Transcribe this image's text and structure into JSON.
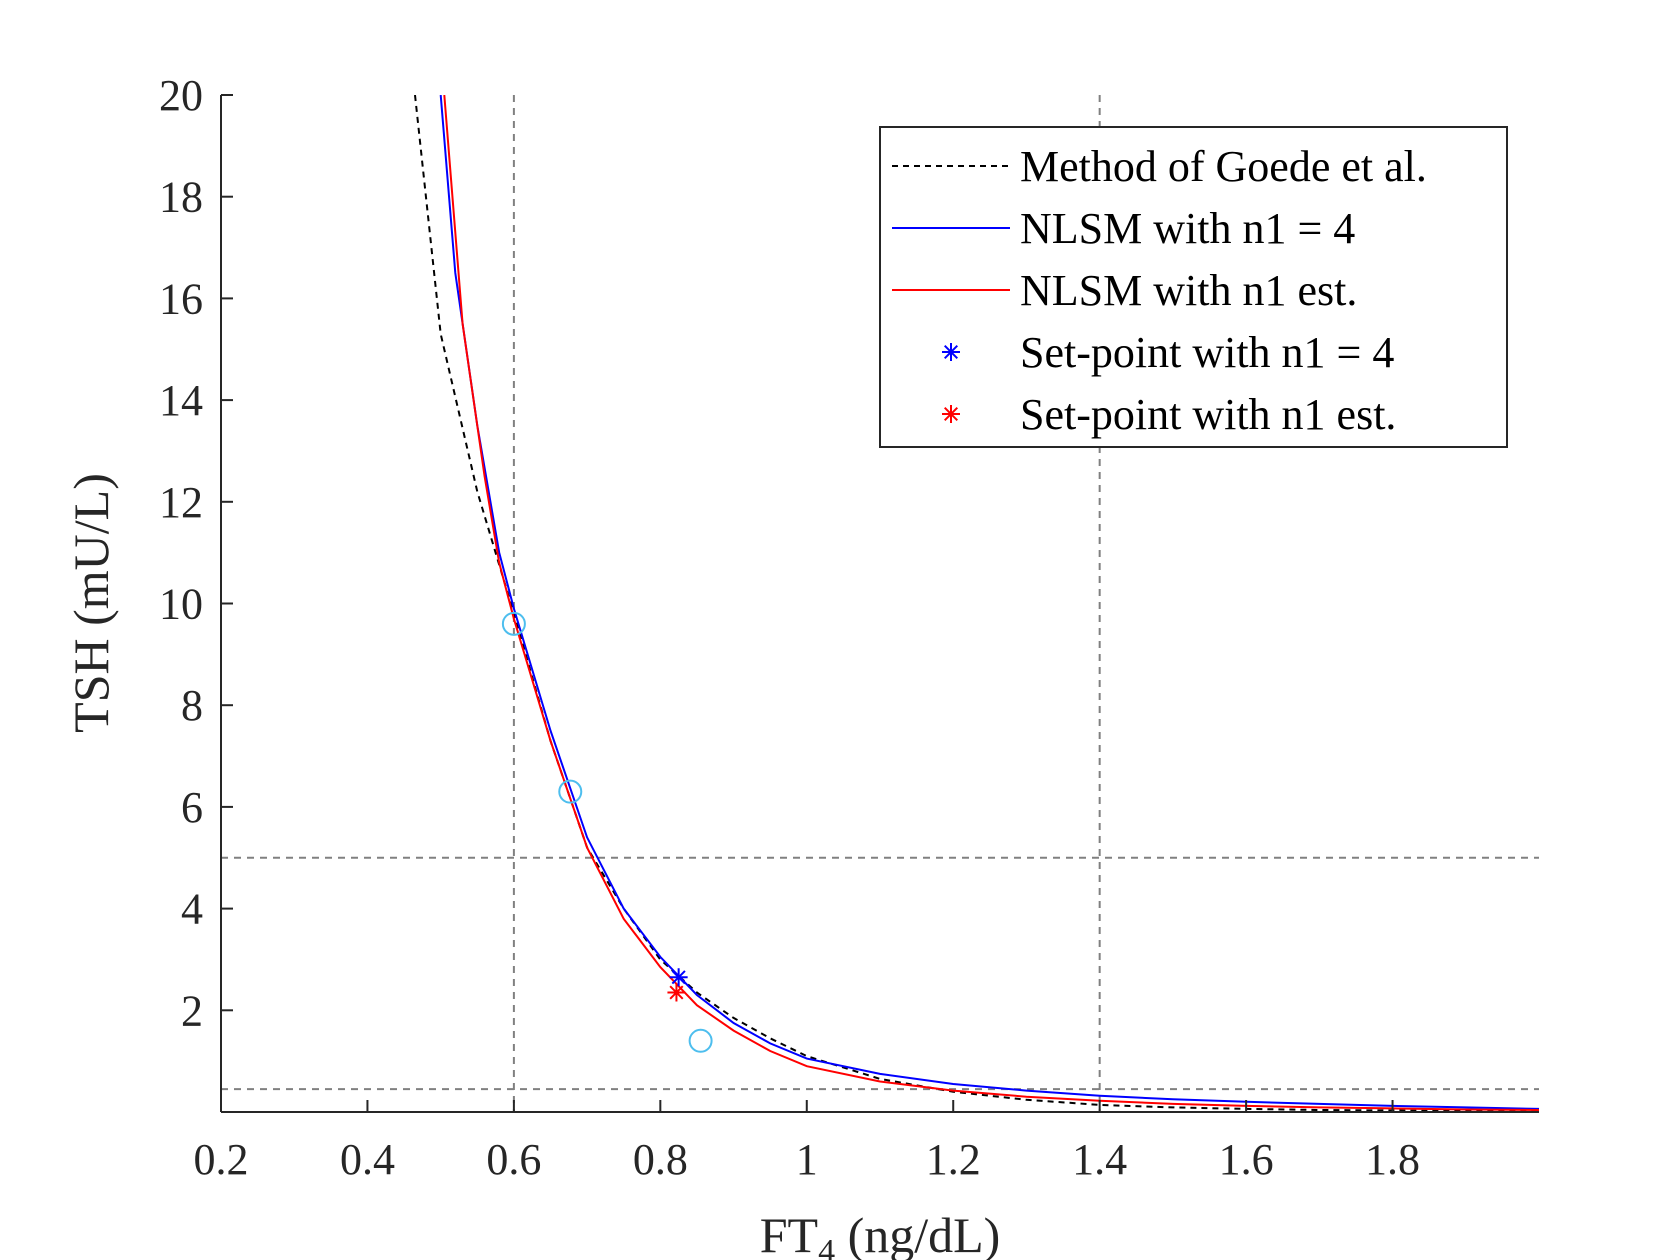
{
  "chart_data": {
    "type": "line",
    "title": "",
    "xlabel": {
      "main": "FT",
      "subscript": "4",
      "unit": " (ng/dL)"
    },
    "ylabel": "TSH (mU/L)",
    "xlim": [
      0.2,
      2.0
    ],
    "ylim": [
      0,
      20
    ],
    "xticks": [
      0.2,
      0.4,
      0.6,
      0.8,
      1.0,
      1.2,
      1.4,
      1.6,
      1.8
    ],
    "xtick_labels": [
      "0.2",
      "0.4",
      "0.6",
      "0.8",
      "1",
      "1.2",
      "1.4",
      "1.6",
      "1.8"
    ],
    "yticks": [
      2,
      4,
      6,
      8,
      10,
      12,
      14,
      16,
      18,
      20
    ],
    "ytick_labels": [
      "2",
      "4",
      "6",
      "8",
      "10",
      "12",
      "14",
      "16",
      "18",
      "20"
    ],
    "reference_lines": {
      "vertical": [
        0.6,
        1.4
      ],
      "horizontal": [
        0.45,
        5.0
      ],
      "color": "#808080"
    },
    "series": [
      {
        "name": "Method of Goede et al.",
        "style": "dashed",
        "color": "#000000",
        "x": [
          0.465,
          0.5,
          0.55,
          0.6,
          0.65,
          0.7,
          0.75,
          0.8,
          0.85,
          0.9,
          0.95,
          1.0,
          1.1,
          1.2,
          1.3,
          1.4,
          1.5,
          1.6,
          1.7,
          1.8,
          1.9,
          2.0
        ],
        "y": [
          20.0,
          15.3,
          12.2,
          9.8,
          7.3,
          5.2,
          4.0,
          3.0,
          2.35,
          1.85,
          1.45,
          1.1,
          0.65,
          0.4,
          0.24,
          0.14,
          0.09,
          0.06,
          0.04,
          0.03,
          0.02,
          0.01
        ]
      },
      {
        "name": "NLSM with n1 = 4",
        "style": "solid",
        "color": "#0000ff",
        "x": [
          0.5,
          0.52,
          0.55,
          0.58,
          0.6,
          0.65,
          0.7,
          0.75,
          0.8,
          0.85,
          0.9,
          0.95,
          1.0,
          1.1,
          1.2,
          1.3,
          1.4,
          1.5,
          1.6,
          1.7,
          1.8,
          1.9,
          2.0
        ],
        "y": [
          20.0,
          16.5,
          13.5,
          11.0,
          9.9,
          7.5,
          5.4,
          4.0,
          3.05,
          2.3,
          1.75,
          1.35,
          1.05,
          0.75,
          0.55,
          0.42,
          0.32,
          0.25,
          0.2,
          0.16,
          0.12,
          0.09,
          0.06
        ]
      },
      {
        "name": "NLSM with n1 est.",
        "style": "solid",
        "color": "#ff0000",
        "x": [
          0.505,
          0.53,
          0.56,
          0.58,
          0.6,
          0.65,
          0.7,
          0.75,
          0.8,
          0.85,
          0.9,
          0.95,
          1.0,
          1.1,
          1.2,
          1.3,
          1.4,
          1.5,
          1.6,
          1.7,
          1.8,
          1.9,
          2.0
        ],
        "y": [
          20.0,
          15.5,
          12.5,
          10.8,
          9.7,
          7.3,
          5.2,
          3.8,
          2.85,
          2.1,
          1.6,
          1.2,
          0.9,
          0.6,
          0.42,
          0.3,
          0.22,
          0.16,
          0.12,
          0.09,
          0.07,
          0.05,
          0.04
        ]
      }
    ],
    "setpoints": [
      {
        "name": "Set-point with n1 = 4",
        "x": 0.825,
        "y": 2.65,
        "color": "#0000ff",
        "marker": "asterisk"
      },
      {
        "name": "Set-point with n1 est.",
        "x": 0.822,
        "y": 2.35,
        "color": "#ff0000",
        "marker": "asterisk"
      }
    ],
    "observations": {
      "marker": "circle",
      "color": "#4dbeee",
      "x": [
        0.6,
        0.677,
        0.855
      ],
      "y": [
        9.6,
        6.3,
        1.4
      ]
    },
    "legend": {
      "position": "top-right",
      "entries": [
        {
          "label": "Method of Goede et al.",
          "kind": "dashed-line",
          "color": "#000000"
        },
        {
          "label": "NLSM with n1 = 4",
          "kind": "line",
          "color": "#0000ff"
        },
        {
          "label": "NLSM with n1 est.",
          "kind": "line",
          "color": "#ff0000"
        },
        {
          "label": "Set-point with n1 = 4",
          "kind": "asterisk",
          "color": "#0000ff"
        },
        {
          "label": "Set-point with n1 est.",
          "kind": "asterisk",
          "color": "#ff0000"
        }
      ]
    }
  }
}
